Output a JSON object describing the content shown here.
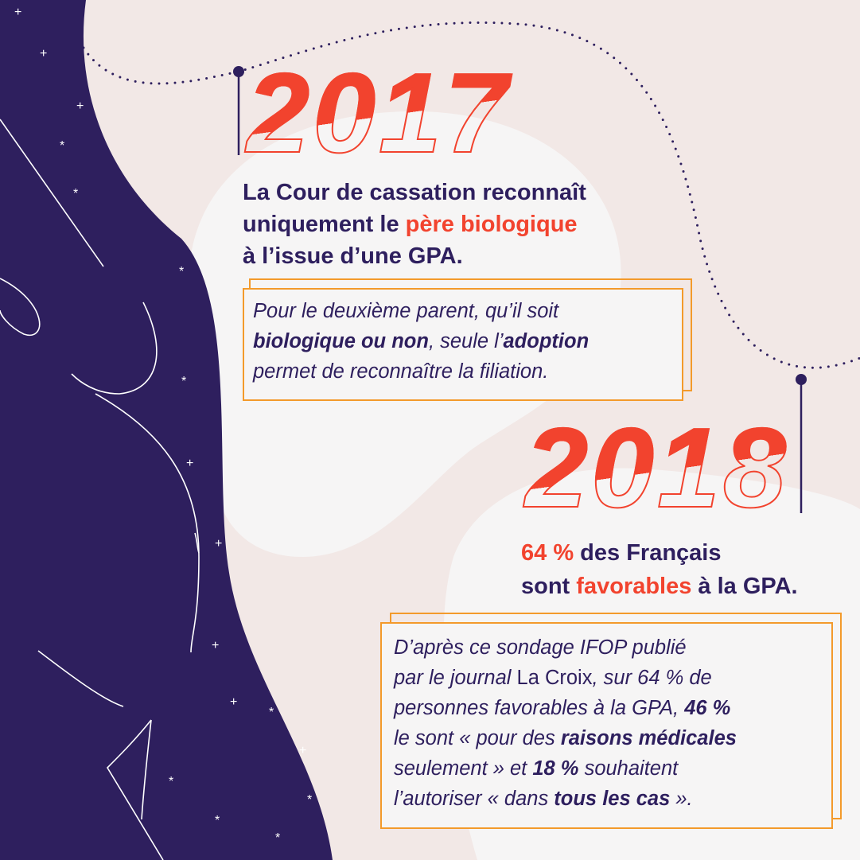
{
  "colors": {
    "navy": "#2e1f5e",
    "red": "#f2432e",
    "orange": "#f39a2b",
    "background": "#f2e8e6",
    "blob": "#f6f5f5"
  },
  "y2017": {
    "year": "2017",
    "heading": {
      "line1": "La Cour de cassation reconnaît",
      "line2_a": "uniquement le ",
      "line2_b": "père biologique",
      "line3": "à l’issue d’une GPA."
    },
    "box": {
      "line1": "Pour le deuxième parent, qu’il soit",
      "line2_a": "biologique ou non",
      "line2_b": ", seule l’",
      "line2_c": "adoption",
      "line3": "permet de reconnaître la filiation."
    }
  },
  "y2018": {
    "year": "2018",
    "heading": {
      "line1_a": "64 %",
      "line1_b": " des Français",
      "line2_a": "sont ",
      "line2_b": "favorables",
      "line2_c": " à la GPA."
    },
    "box": {
      "line1": "D’après ce sondage IFOP publié",
      "line2_a": "par le journal ",
      "line2_b": "La Croix",
      "line2_c": ", sur 64 % de",
      "line3_a": "personnes favorables à la GPA, ",
      "line3_b": "46 %",
      "line4_a": "le sont « pour des ",
      "line4_b": "raisons médicales",
      "line5_a": "seulement » et ",
      "line5_b": "18 %",
      "line5_c": " souhaitent",
      "line6_a": "l’autoriser « dans ",
      "line6_b": "tous les cas",
      "line6_c": " »."
    }
  }
}
